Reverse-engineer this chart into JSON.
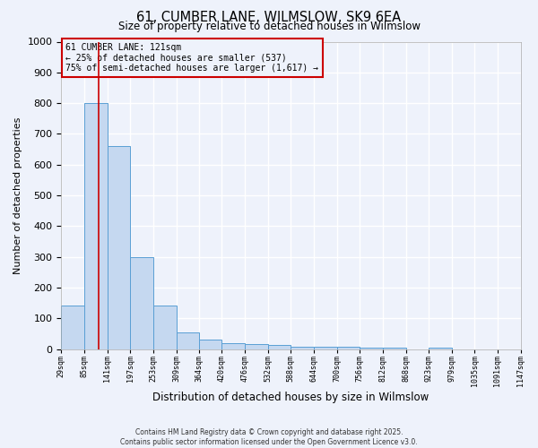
{
  "title": "61, CUMBER LANE, WILMSLOW, SK9 6EA",
  "subtitle": "Size of property relative to detached houses in Wilmslow",
  "xlabel": "Distribution of detached houses by size in Wilmslow",
  "ylabel": "Number of detached properties",
  "bins": [
    "29sqm",
    "85sqm",
    "141sqm",
    "197sqm",
    "253sqm",
    "309sqm",
    "364sqm",
    "420sqm",
    "476sqm",
    "532sqm",
    "588sqm",
    "644sqm",
    "700sqm",
    "756sqm",
    "812sqm",
    "868sqm",
    "923sqm",
    "979sqm",
    "1035sqm",
    "1091sqm",
    "1147sqm"
  ],
  "bin_edges": [
    29,
    85,
    141,
    197,
    253,
    309,
    364,
    420,
    476,
    532,
    588,
    644,
    700,
    756,
    812,
    868,
    923,
    979,
    1035,
    1091,
    1147
  ],
  "values": [
    140,
    800,
    660,
    300,
    140,
    55,
    30,
    18,
    15,
    12,
    8,
    8,
    6,
    5,
    4,
    0,
    3,
    0,
    0,
    0
  ],
  "bar_color": "#c5d8f0",
  "bar_edge_color": "#5a9fd4",
  "property_size": 121,
  "property_label": "61 CUMBER LANE: 121sqm",
  "annotation_line1": "← 25% of detached houses are smaller (537)",
  "annotation_line2": "75% of semi-detached houses are larger (1,617) →",
  "annotation_box_color": "#cc0000",
  "vline_color": "#cc0000",
  "ylim": [
    0,
    1000
  ],
  "xlim_min": 29,
  "xlim_max": 1147,
  "background_color": "#eef2fb",
  "grid_color": "#ffffff",
  "footer1": "Contains HM Land Registry data © Crown copyright and database right 2025.",
  "footer2": "Contains public sector information licensed under the Open Government Licence v3.0."
}
